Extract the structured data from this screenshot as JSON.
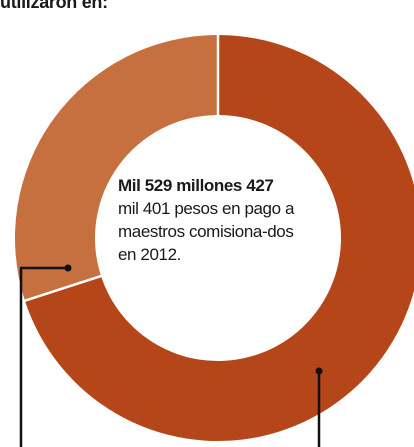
{
  "header": {
    "truncated_text": "utilizaron en:"
  },
  "center": {
    "bold_text": "Mil 529 millones",
    "number_text": " 427",
    "body_text": "mil 401 pesos en pago a maestros comisiona-dos en 2012."
  },
  "chart_data": {
    "type": "pie",
    "style": "donut",
    "title": "",
    "slices": [
      {
        "value": 70,
        "color": "#b5461a"
      },
      {
        "value": 30,
        "color": "#c66f3f"
      }
    ],
    "start_angle_deg": 0,
    "direction": "clockwise",
    "separator_color": "#ffffff"
  }
}
